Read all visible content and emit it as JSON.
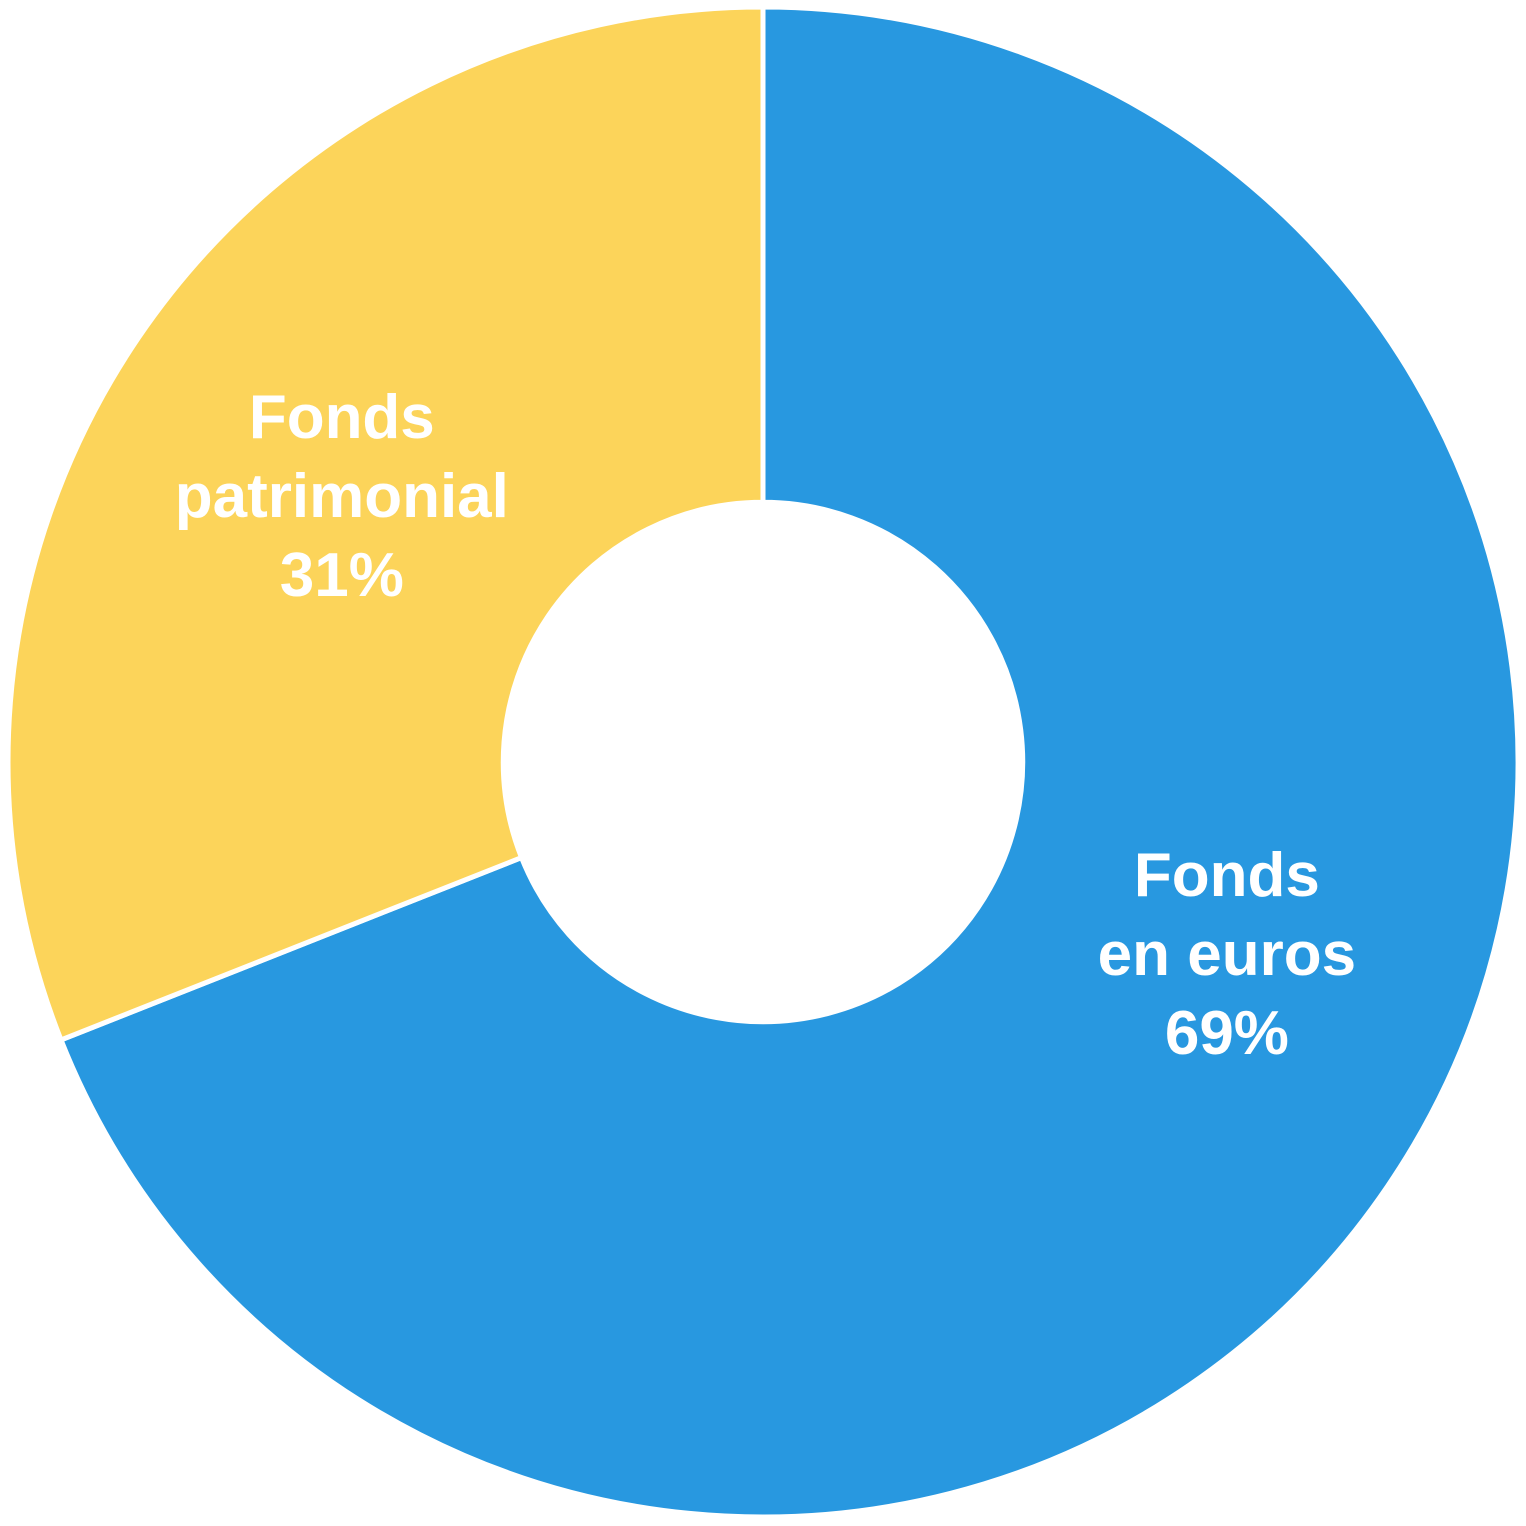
{
  "chart_data": {
    "type": "pie",
    "subtype": "donut",
    "title": "",
    "unit": "%",
    "start_angle_deg": 0,
    "direction": "clockwise",
    "inner_radius_ratio": 0.344,
    "separator_color": "#FFFFFF",
    "label_color": "#FFFFFF",
    "legend": "none",
    "labels_position": "inside",
    "slices": [
      {
        "name": "Fonds en euros",
        "value": 69,
        "percent_label": "69%",
        "color": "#2898E0",
        "label_lines": [
          "Fonds",
          "en euros",
          "69%"
        ]
      },
      {
        "name": "Fonds patrimonial",
        "value": 31,
        "percent_label": "31%",
        "color": "#FCD45A",
        "label_lines": [
          "Fonds",
          "patrimonial",
          "31%"
        ]
      }
    ]
  }
}
